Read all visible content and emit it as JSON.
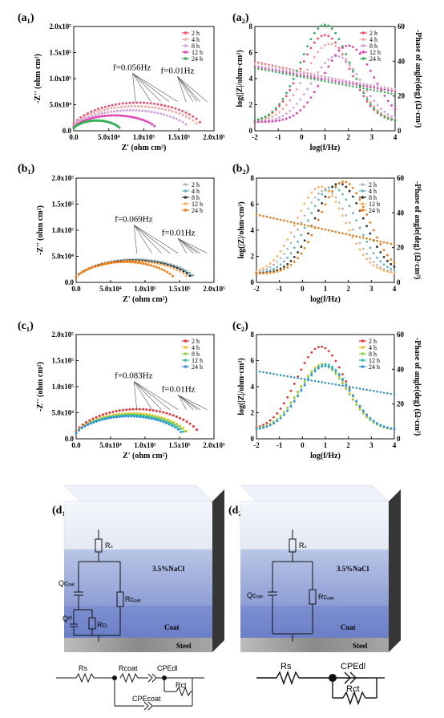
{
  "panel_labels": {
    "a1": "(a₁)",
    "a2": "(a₂)",
    "b1": "(b₁)",
    "b2": "(b₂)",
    "c1": "(c₁)",
    "c2": "(c₂)",
    "d1": "(d₁)",
    "d2": "(d₂)"
  },
  "colors": {
    "2 h": "#f0506e",
    "4 h": "#f2a8a0",
    "8 h": "#d0a0e0",
    "12 h": "#e040b0",
    "24 h": "#30b050",
    "b_2 h": "#b8b8b8",
    "b_4 h": "#6ab0c0",
    "b_8 h": "#303030",
    "b_12 h": "#ffb060",
    "b_24 h": "#f07a10",
    "c_2 h": "#f03030",
    "c_4 h": "#f0c020",
    "c_8 h": "#90d040",
    "c_12 h": "#30c0a0",
    "c_24 h": "#3090e0"
  },
  "chart_data": [
    {
      "id": "a1",
      "type": "scatter",
      "title": "",
      "xlabel": "Z' (ohm cm²)",
      "ylabel": "-Z'' (ohm cm²)",
      "xlim": [
        0,
        200000
      ],
      "ylim": [
        0,
        200000
      ],
      "xticks": [
        "0.0",
        "5.0x10⁴",
        "1.0x10⁵",
        "1.5x10⁵",
        "2.0x10⁵"
      ],
      "yticks": [
        "0.0",
        "5.0x10⁴",
        "1.0x10⁵",
        "1.5x10⁵",
        "2.0x10⁵"
      ],
      "legend": [
        "2 h",
        "4 h",
        "8 h",
        "12 h",
        "24 h"
      ],
      "annotations": [
        "f=0.056Hz",
        "f=0.01Hz"
      ],
      "series": [
        {
          "name": "2 h",
          "rmax": 180000,
          "ymax": 55000
        },
        {
          "name": "4 h",
          "rmax": 175000,
          "ymax": 48000
        },
        {
          "name": "8 h",
          "rmax": 160000,
          "ymax": 40000
        },
        {
          "name": "12 h",
          "rmax": 115000,
          "ymax": 30000
        },
        {
          "name": "24 h",
          "rmax": 65000,
          "ymax": 20000
        }
      ]
    },
    {
      "id": "a2",
      "type": "line",
      "title": "",
      "xlabel": "log(f/Hz)",
      "ylabel": "log(|Z|/ohm·cm²)",
      "ylabel2": "-Phase of angle(deg) (Ω·cm²)",
      "xlim": [
        -2,
        4
      ],
      "ylim": [
        0,
        8
      ],
      "ylim2": [
        0,
        60
      ],
      "xticks": [
        "-2",
        "-1",
        "0",
        "1",
        "2",
        "3",
        "4"
      ],
      "yticks": [
        "0",
        "2",
        "4",
        "6",
        "8"
      ],
      "yticks2": [
        "0",
        "20",
        "40",
        "60"
      ],
      "legend": [
        "2 h",
        "4 h",
        "8 h",
        "12 h",
        "24 h"
      ],
      "series": [
        {
          "name": "2 h",
          "z": [
            5.3,
            4.2,
            3.0
          ],
          "phase_peak": 50,
          "peak_f": 1.0
        },
        {
          "name": "4 h",
          "z": [
            5.2,
            4.1,
            3.1
          ],
          "phase_peak": 45,
          "peak_f": 1.2
        },
        {
          "name": "8 h",
          "z": [
            5.0,
            4.0,
            3.2
          ],
          "phase_peak": 38,
          "peak_f": 1.5
        },
        {
          "name": "12 h",
          "z": [
            4.9,
            3.9,
            3.0
          ],
          "phase_peak": 44,
          "peak_f": 2.0
        },
        {
          "name": "24 h",
          "z": [
            4.8,
            3.8,
            2.8
          ],
          "phase_peak": 56,
          "peak_f": 1.0
        }
      ]
    },
    {
      "id": "b1",
      "type": "scatter",
      "title": "",
      "xlabel": "Z' (ohm cm²)",
      "ylabel": "-Z'' (ohm cm²)",
      "xlim": [
        0,
        200000
      ],
      "ylim": [
        0,
        200000
      ],
      "xticks": [
        "0.0",
        "5.0x10⁴",
        "1.0x10⁵",
        "1.5x10⁵",
        "2.0x10⁵"
      ],
      "yticks": [
        "0.0",
        "5.0x10⁴",
        "1.0x10⁵",
        "1.5x10⁵",
        "2.0x10⁵"
      ],
      "legend": [
        "2 h",
        "4 h",
        "8 h",
        "12 h",
        "24 h"
      ],
      "annotations": [
        "f=0.069Hz",
        "f=0.01Hz"
      ],
      "series": [
        {
          "name": "2 h",
          "rmax": 170000,
          "ymax": 45000
        },
        {
          "name": "4 h",
          "rmax": 168000,
          "ymax": 44000
        },
        {
          "name": "8 h",
          "rmax": 165000,
          "ymax": 43000
        },
        {
          "name": "12 h",
          "rmax": 160000,
          "ymax": 42000
        },
        {
          "name": "24 h",
          "rmax": 140000,
          "ymax": 40000
        }
      ]
    },
    {
      "id": "b2",
      "type": "line",
      "title": "",
      "xlabel": "log(f/Hz)",
      "ylabel": "log(|Z|/ohm·cm²)",
      "ylabel2": "-Phase of angle(deg) (Ω·cm²)",
      "xlim": [
        -2,
        4
      ],
      "ylim": [
        0,
        8
      ],
      "ylim2": [
        0,
        60
      ],
      "xticks": [
        "-2",
        "-1",
        "0",
        "1",
        "2",
        "3",
        "4"
      ],
      "yticks": [
        "0",
        "2",
        "4",
        "6",
        "8"
      ],
      "yticks2": [
        "0",
        "20",
        "40",
        "60"
      ],
      "legend": [
        "2 h",
        "4 h",
        "8 h",
        "12 h",
        "24 h"
      ],
      "series": [
        {
          "name": "2 h",
          "z": [
            5.2,
            4.0,
            2.9
          ],
          "phase_peak": 48,
          "peak_f": 1.0
        },
        {
          "name": "4 h",
          "z": [
            5.2,
            4.0,
            2.9
          ],
          "phase_peak": 50,
          "peak_f": 1.3
        },
        {
          "name": "8 h",
          "z": [
            5.2,
            4.0,
            2.9
          ],
          "phase_peak": 52,
          "peak_f": 1.6
        },
        {
          "name": "12 h",
          "z": [
            5.2,
            4.0,
            2.9
          ],
          "phase_peak": 50,
          "peak_f": 0.8
        },
        {
          "name": "24 h",
          "z": [
            5.2,
            4.0,
            2.9
          ],
          "phase_peak": 53,
          "peak_f": 1.8
        }
      ]
    },
    {
      "id": "c1",
      "type": "scatter",
      "title": "",
      "xlabel": "Z' (ohm cm²)",
      "ylabel": "-Z'' (ohm cm²)",
      "xlim": [
        0,
        200000
      ],
      "ylim": [
        0,
        200000
      ],
      "xticks": [
        "0.0",
        "5.0x10⁴",
        "1.0x10⁵",
        "1.5x10⁵",
        "2.0x10⁵"
      ],
      "yticks": [
        "0.0",
        "5.0x10⁴",
        "1.0x10⁵",
        "1.5x10⁵",
        "2.0x10⁵"
      ],
      "legend": [
        "2 h",
        "4 h",
        "8 h",
        "12 h",
        "24 h"
      ],
      "annotations": [
        "f=0.083Hz",
        "f=0.01Hz"
      ],
      "series": [
        {
          "name": "2 h",
          "rmax": 175000,
          "ymax": 58000
        },
        {
          "name": "4 h",
          "rmax": 160000,
          "ymax": 50000
        },
        {
          "name": "8 h",
          "rmax": 158000,
          "ymax": 48000
        },
        {
          "name": "12 h",
          "rmax": 155000,
          "ymax": 46000
        },
        {
          "name": "24 h",
          "rmax": 152000,
          "ymax": 44000
        }
      ]
    },
    {
      "id": "c2",
      "type": "line",
      "title": "",
      "xlabel": "log(f/Hz)",
      "ylabel": "log(|Z|/ohm·cm²)",
      "ylabel2": "-Phase of angle(deg) (Ω·cm²)",
      "xlim": [
        -2,
        4
      ],
      "ylim": [
        0,
        8
      ],
      "ylim2": [
        0,
        60
      ],
      "xticks": [
        "-2",
        "-1",
        "0",
        "1",
        "2",
        "3",
        "4"
      ],
      "yticks": [
        "0",
        "2",
        "4",
        "6",
        "8"
      ],
      "yticks2": [
        "0",
        "20",
        "40",
        "60"
      ],
      "legend": [
        "2 h",
        "4 h",
        "8 h",
        "12 h",
        "24 h"
      ],
      "series": [
        {
          "name": "2 h",
          "z": [
            5.2,
            4.3,
            3.4
          ],
          "phase_peak": 48,
          "peak_f": 0.8
        },
        {
          "name": "4 h",
          "z": [
            5.2,
            4.3,
            3.4
          ],
          "phase_peak": 38,
          "peak_f": 0.9
        },
        {
          "name": "8 h",
          "z": [
            5.2,
            4.3,
            3.4
          ],
          "phase_peak": 37,
          "peak_f": 0.9
        },
        {
          "name": "12 h",
          "z": [
            5.2,
            4.3,
            3.4
          ],
          "phase_peak": 38,
          "peak_f": 1.0
        },
        {
          "name": "24 h",
          "z": [
            5.2,
            4.3,
            3.4
          ],
          "phase_peak": 37,
          "peak_f": 1.0
        }
      ]
    }
  ],
  "diagrams": {
    "electrolyte": "3.5%NaCl",
    "coat": "Coat",
    "steel": "Steel",
    "d1_labels": {
      "rs": "Rₛ",
      "qcoat": "Qᴄₒₐₜ",
      "rcoat": "Rᴄₒₐₜ",
      "qdl": "Qᵈˡ",
      "rct": "Rᴄₜ"
    },
    "d2_labels": {
      "rs": "Rₛ",
      "qcoat": "Qᴄₒₐₜ",
      "rcoat": "Rᴄₒₐₜ"
    },
    "circuit1": {
      "rs": "Rs",
      "rcoat": "Rcoat",
      "cpedl": "CPEdl",
      "rct": "Rct",
      "cpecoat": "CPEcoat"
    },
    "circuit2": {
      "rs": "Rs",
      "cpedl": "CPEdl",
      "rct": "Rct"
    }
  }
}
